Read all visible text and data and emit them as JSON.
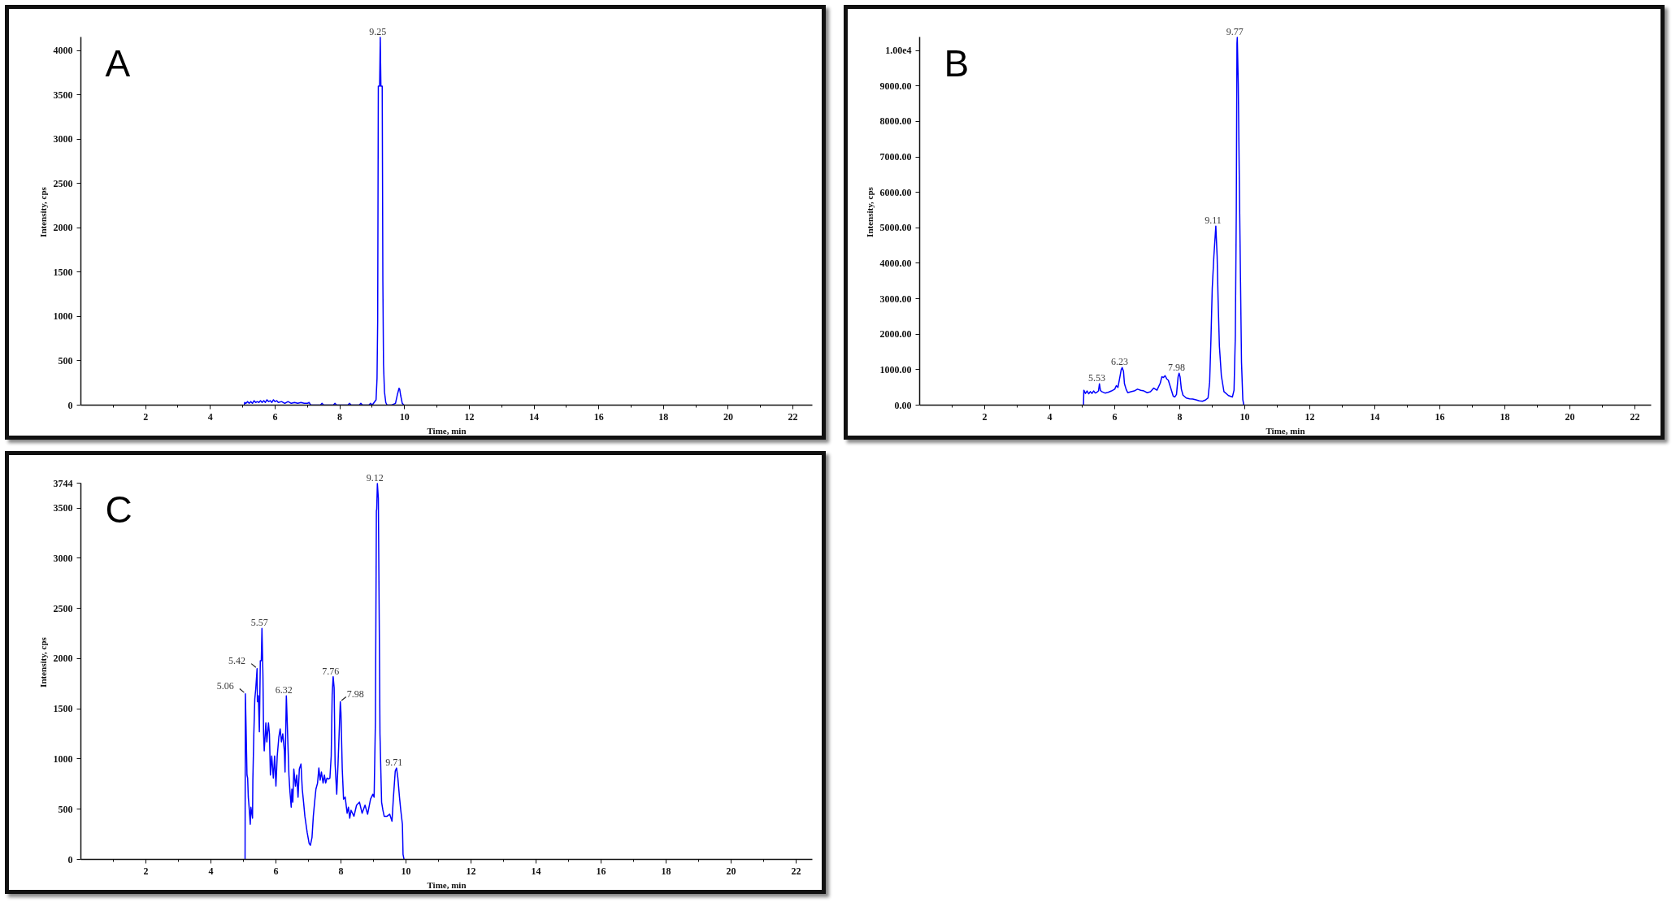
{
  "chart_data": [
    {
      "type": "line",
      "title": "A",
      "xlabel": "Time, min",
      "ylabel": "Intensity, cps",
      "color": "#0000ff",
      "x": [
        5.05,
        5.06,
        5.1,
        5.15,
        5.2,
        5.25,
        5.3,
        5.35,
        5.4,
        5.45,
        5.5,
        5.55,
        5.6,
        5.65,
        5.7,
        5.75,
        5.8,
        5.85,
        5.9,
        5.95,
        6.0,
        6.05,
        6.1,
        6.2,
        6.3,
        6.4,
        6.5,
        6.6,
        6.7,
        6.8,
        6.9,
        7.0,
        7.05,
        7.1,
        7.4,
        7.45,
        7.5,
        7.8,
        7.85,
        7.9,
        8.25,
        8.3,
        8.35,
        8.6,
        8.65,
        8.7,
        8.9,
        8.95,
        9.0,
        9.12,
        9.15,
        9.17,
        9.19,
        9.23,
        9.25,
        9.27,
        9.31,
        9.33,
        9.35,
        9.38,
        9.42,
        9.46,
        9.6,
        9.72,
        9.78,
        9.83,
        9.85,
        9.88,
        9.93,
        9.98
      ],
      "values": [
        0,
        30,
        20,
        40,
        20,
        40,
        20,
        50,
        30,
        40,
        30,
        50,
        30,
        50,
        30,
        60,
        40,
        50,
        30,
        60,
        40,
        50,
        30,
        40,
        20,
        40,
        20,
        30,
        20,
        30,
        20,
        20,
        30,
        0,
        0,
        20,
        0,
        0,
        20,
        0,
        0,
        20,
        0,
        0,
        20,
        0,
        0,
        20,
        0,
        60,
        300,
        950,
        3600,
        3600,
        4150,
        3600,
        3600,
        1400,
        460,
        150,
        30,
        0,
        0,
        20,
        120,
        190,
        180,
        110,
        20,
        0
      ],
      "xlim": [
        0,
        22.6
      ],
      "ylim": [
        0,
        4150
      ],
      "xticks": [
        {
          "value": 1,
          "label": null
        },
        2,
        {
          "value": 3,
          "label": null
        },
        4,
        {
          "value": 5,
          "label": null
        },
        6,
        {
          "value": 7,
          "label": null
        },
        8,
        {
          "value": 9,
          "label": null
        },
        10,
        {
          "value": 11,
          "label": null
        },
        12,
        {
          "value": 13,
          "label": null
        },
        14,
        {
          "value": 15,
          "label": null
        },
        16,
        {
          "value": 17,
          "label": null
        },
        18,
        {
          "value": 19,
          "label": null
        },
        20,
        {
          "value": 21,
          "label": null
        },
        22
      ],
      "yticks": [
        0,
        500,
        1000,
        1500,
        2000,
        2500,
        3000,
        3500,
        4000
      ],
      "annotations": [
        {
          "text": "9.25",
          "x": 9.25,
          "y": 4150
        }
      ]
    },
    {
      "type": "line",
      "title": "B",
      "xlabel": "Time, min",
      "ylabel": "Intensity, cps",
      "color": "#0000ff",
      "x": [
        5.04,
        5.05,
        5.1,
        5.15,
        5.2,
        5.25,
        5.3,
        5.35,
        5.4,
        5.45,
        5.5,
        5.53,
        5.56,
        5.6,
        5.7,
        5.8,
        5.9,
        6.0,
        6.05,
        6.1,
        6.15,
        6.2,
        6.23,
        6.27,
        6.3,
        6.35,
        6.4,
        6.5,
        6.6,
        6.7,
        6.8,
        6.9,
        7.0,
        7.1,
        7.2,
        7.3,
        7.4,
        7.45,
        7.5,
        7.55,
        7.6,
        7.65,
        7.7,
        7.75,
        7.8,
        7.85,
        7.9,
        7.95,
        7.98,
        8.01,
        8.05,
        8.1,
        8.2,
        8.3,
        8.4,
        8.5,
        8.6,
        8.7,
        8.8,
        8.87,
        8.92,
        8.96,
        9.0,
        9.05,
        9.11,
        9.15,
        9.18,
        9.22,
        9.28,
        9.36,
        9.5,
        9.62,
        9.67,
        9.71,
        9.74,
        9.76,
        9.77,
        9.8,
        9.83,
        9.87,
        9.9,
        9.94,
        9.97
      ],
      "values": [
        0,
        420,
        330,
        400,
        320,
        380,
        330,
        400,
        340,
        360,
        400,
        600,
        420,
        380,
        340,
        360,
        400,
        450,
        550,
        500,
        750,
        1000,
        1060,
        950,
        600,
        450,
        350,
        380,
        400,
        450,
        420,
        400,
        350,
        380,
        480,
        420,
        620,
        800,
        780,
        830,
        740,
        700,
        550,
        400,
        250,
        230,
        300,
        800,
        900,
        800,
        450,
        280,
        200,
        180,
        170,
        150,
        120,
        110,
        150,
        200,
        650,
        1850,
        3300,
        4200,
        5050,
        4200,
        2970,
        1660,
        830,
        380,
        270,
        230,
        420,
        1960,
        5480,
        10200,
        10370,
        9080,
        6530,
        3460,
        1210,
        160,
        0
      ],
      "xlim": [
        0,
        22.5
      ],
      "ylim": [
        0,
        10370
      ],
      "xticks": [
        {
          "value": 1,
          "label": null
        },
        2,
        {
          "value": 3,
          "label": null
        },
        4,
        {
          "value": 5,
          "label": null
        },
        6,
        {
          "value": 7,
          "label": null
        },
        8,
        {
          "value": 9,
          "label": null
        },
        10,
        {
          "value": 11,
          "label": null
        },
        12,
        {
          "value": 13,
          "label": null
        },
        14,
        {
          "value": 15,
          "label": null
        },
        16,
        {
          "value": 17,
          "label": null
        },
        18,
        {
          "value": 19,
          "label": null
        },
        20,
        {
          "value": 21,
          "label": null
        },
        22
      ],
      "yticks": [
        {
          "value": 0,
          "label": "0.00"
        },
        {
          "value": 1000,
          "label": "1000.00"
        },
        {
          "value": 2000,
          "label": "2000.00"
        },
        {
          "value": 3000,
          "label": "3000.00"
        },
        {
          "value": 4000,
          "label": "4000.00"
        },
        {
          "value": 5000,
          "label": "5000.00"
        },
        {
          "value": 6000,
          "label": "6000.00"
        },
        {
          "value": 7000,
          "label": "7000.00"
        },
        {
          "value": 8000,
          "label": "8000.00"
        },
        {
          "value": 9000,
          "label": "9000.00"
        },
        {
          "value": 10000,
          "label": "1.00e4"
        }
      ],
      "annotations": [
        {
          "text": "5.53",
          "x": 5.53,
          "y": 600
        },
        {
          "text": "6.23",
          "x": 6.23,
          "y": 1060
        },
        {
          "text": "7.98",
          "x": 7.98,
          "y": 900
        },
        {
          "text": "9.11",
          "x": 9.11,
          "y": 5050
        },
        {
          "text": "9.77",
          "x": 9.77,
          "y": 10370
        }
      ]
    },
    {
      "type": "line",
      "title": "C",
      "xlabel": "Time, min",
      "ylabel": "Intensity, cps",
      "color": "#0000ff",
      "x": [
        5.05,
        5.06,
        5.08,
        5.11,
        5.13,
        5.15,
        5.17,
        5.21,
        5.23,
        5.28,
        5.29,
        5.32,
        5.35,
        5.38,
        5.42,
        5.43,
        5.46,
        5.49,
        5.52,
        5.55,
        5.57,
        5.6,
        5.62,
        5.64,
        5.69,
        5.72,
        5.77,
        5.8,
        5.83,
        5.87,
        5.92,
        5.96,
        6.0,
        6.04,
        6.09,
        6.13,
        6.17,
        6.21,
        6.26,
        6.28,
        6.32,
        6.34,
        6.37,
        6.4,
        6.43,
        6.47,
        6.49,
        6.52,
        6.55,
        6.6,
        6.64,
        6.68,
        6.72,
        6.77,
        6.81,
        6.85,
        6.89,
        6.96,
        7.02,
        7.06,
        7.11,
        7.15,
        7.19,
        7.23,
        7.28,
        7.32,
        7.36,
        7.4,
        7.45,
        7.49,
        7.53,
        7.57,
        7.62,
        7.66,
        7.7,
        7.73,
        7.76,
        7.79,
        7.82,
        7.87,
        7.91,
        7.98,
        8.0,
        8.04,
        8.08,
        8.13,
        8.19,
        8.23,
        8.27,
        8.31,
        8.4,
        8.48,
        8.57,
        8.65,
        8.74,
        8.82,
        8.91,
        8.98,
        9.02,
        9.06,
        9.09,
        9.1,
        9.12,
        9.15,
        9.18,
        9.2,
        9.25,
        9.29,
        9.33,
        9.42,
        9.5,
        9.57,
        9.61,
        9.67,
        9.71,
        9.75,
        9.8,
        9.84,
        9.89,
        9.91,
        9.94
      ],
      "values": [
        0,
        1650,
        1340,
        840,
        810,
        620,
        540,
        350,
        520,
        410,
        790,
        1250,
        1600,
        1700,
        1900,
        1570,
        1630,
        1270,
        1980,
        1980,
        2300,
        1840,
        1250,
        1080,
        1360,
        1170,
        1360,
        1250,
        840,
        1030,
        810,
        1030,
        730,
        1030,
        1220,
        1300,
        1170,
        1250,
        1080,
        870,
        1630,
        1440,
        1140,
        840,
        680,
        520,
        700,
        570,
        900,
        730,
        840,
        620,
        900,
        950,
        700,
        570,
        430,
        270,
        160,
        140,
        220,
        430,
        570,
        700,
        760,
        910,
        790,
        870,
        760,
        840,
        760,
        810,
        800,
        810,
        1030,
        1640,
        1820,
        1710,
        950,
        650,
        950,
        1570,
        1460,
        900,
        600,
        620,
        460,
        520,
        410,
        490,
        430,
        540,
        570,
        460,
        540,
        450,
        600,
        650,
        620,
        1380,
        3470,
        3490,
        3744,
        3600,
        2250,
        1250,
        570,
        490,
        430,
        430,
        450,
        380,
        600,
        880,
        910,
        810,
        620,
        490,
        350,
        50,
        0
      ],
      "xlim": [
        0,
        22.5
      ],
      "ylim": [
        0,
        3744
      ],
      "xticks": [
        {
          "value": 1,
          "label": null
        },
        2,
        {
          "value": 3,
          "label": null
        },
        4,
        {
          "value": 5,
          "label": null
        },
        6,
        {
          "value": 7,
          "label": null
        },
        8,
        {
          "value": 9,
          "label": null
        },
        10,
        {
          "value": 11,
          "label": null
        },
        12,
        {
          "value": 13,
          "label": null
        },
        14,
        {
          "value": 15,
          "label": null
        },
        16,
        {
          "value": 17,
          "label": null
        },
        18,
        {
          "value": 19,
          "label": null
        },
        20,
        {
          "value": 21,
          "label": null
        },
        22
      ],
      "yticks": [
        0,
        500,
        1000,
        1500,
        2000,
        2500,
        3000,
        3500,
        3744
      ],
      "annotations": [
        {
          "text": "5.06",
          "x": 5.06,
          "y": 1650
        },
        {
          "text": "5.42",
          "x": 5.42,
          "y": 1900
        },
        {
          "text": "5.57",
          "x": 5.57,
          "y": 2300
        },
        {
          "text": "6.32",
          "x": 6.32,
          "y": 1630
        },
        {
          "text": "7.76",
          "x": 7.76,
          "y": 1820
        },
        {
          "text": "7.98",
          "x": 7.98,
          "y": 1570
        },
        {
          "text": "9.12",
          "x": 9.12,
          "y": 3744
        },
        {
          "text": "9.71",
          "x": 9.71,
          "y": 910
        }
      ]
    }
  ]
}
